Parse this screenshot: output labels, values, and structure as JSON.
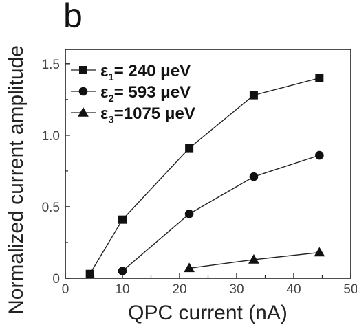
{
  "panel_label": "b",
  "chart_data": {
    "type": "line",
    "xlabel": "QPC current (nA)",
    "ylabel": "Normalized current amplitude",
    "xlim": [
      0,
      50
    ],
    "ylim": [
      0,
      1.6
    ],
    "xticks": [
      "0",
      "10",
      "20",
      "30",
      "40",
      "50"
    ],
    "yticks": [
      "0",
      "0.5",
      "1.0",
      "1.5"
    ],
    "legend_position": "top-left",
    "series": [
      {
        "legend": {
          "sym": "ε",
          "sub": "1",
          "rest": "=  240  μeV"
        },
        "marker": "square",
        "x": [
          4.3,
          10.0,
          21.7,
          33.0,
          44.5
        ],
        "y": [
          0.03,
          0.41,
          0.91,
          1.28,
          1.4
        ]
      },
      {
        "legend": {
          "sym": "ε",
          "sub": "2",
          "rest": "=  593  μeV"
        },
        "marker": "circle",
        "x": [
          10.0,
          21.7,
          33.0,
          44.5
        ],
        "y": [
          0.05,
          0.45,
          0.71,
          0.86
        ]
      },
      {
        "legend": {
          "sym": "ε",
          "sub": "3",
          "rest": "=1075  μeV"
        },
        "marker": "triangle",
        "x": [
          21.7,
          33.0,
          44.5
        ],
        "y": [
          0.07,
          0.13,
          0.18
        ]
      }
    ]
  }
}
